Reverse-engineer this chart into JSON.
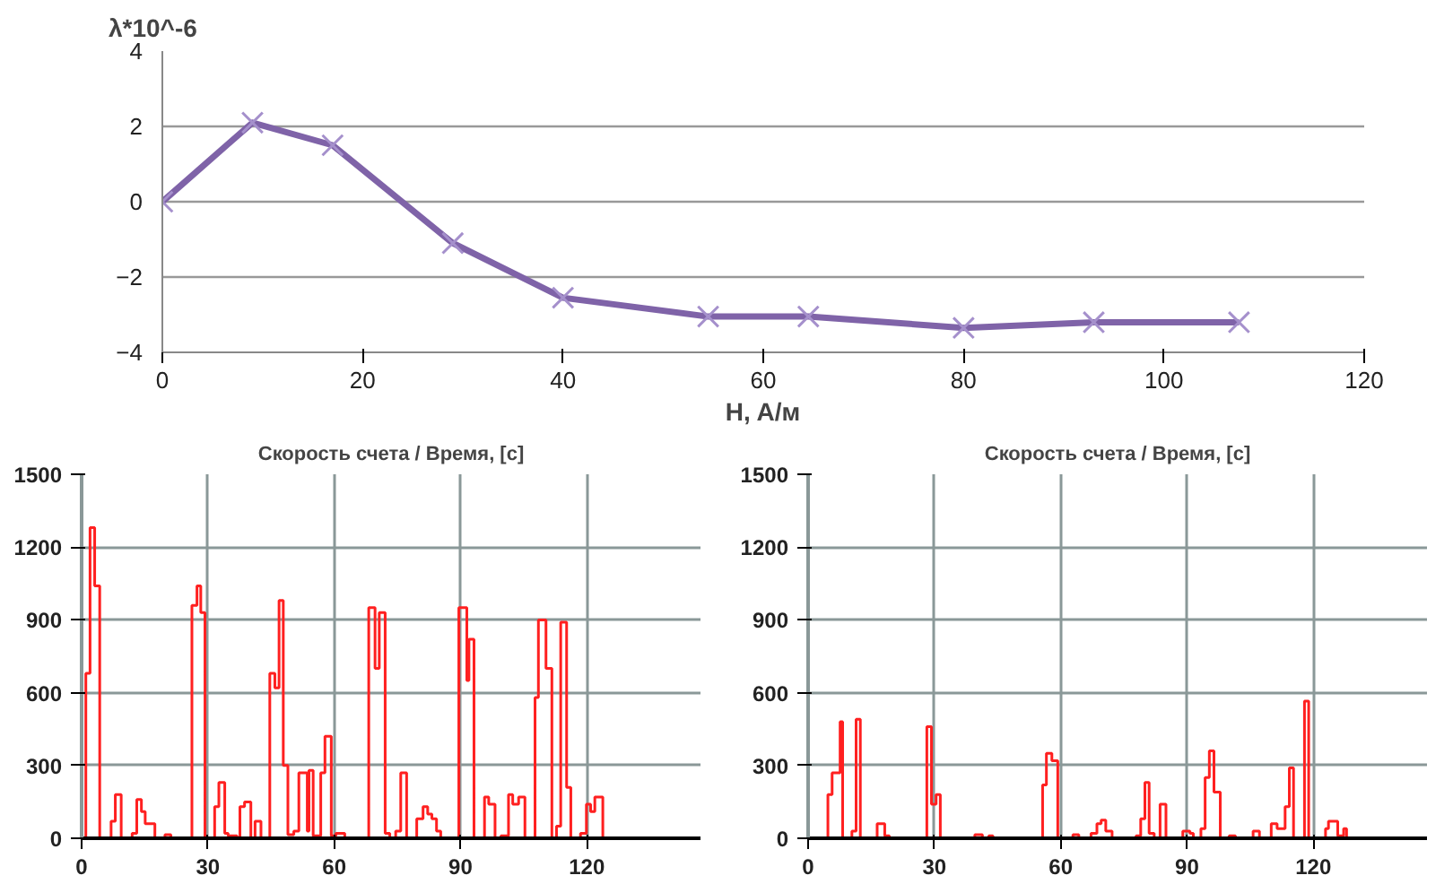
{
  "chart_data": [
    {
      "type": "line",
      "xlabel": "H, A/м",
      "ylabel": "λ*10^-6",
      "x": [
        0,
        9,
        17,
        29,
        40,
        54.5,
        64.5,
        80,
        93,
        107.5
      ],
      "series": [
        {
          "color": "#7f63a8",
          "values": [
            0,
            2.1,
            1.5,
            -1.1,
            -2.55,
            -3.05,
            -3.05,
            -3.35,
            -3.2,
            -3.2
          ]
        }
      ],
      "marker": "cross",
      "line_style": "solid",
      "xlim": [
        0,
        120
      ],
      "ylim": [
        -4,
        4
      ],
      "xticks": [
        0,
        20,
        40,
        60,
        80,
        100,
        120
      ],
      "yticks": [
        -4,
        -2,
        0,
        2,
        4
      ],
      "grid": "y"
    },
    {
      "type": "step",
      "title": "Скорость счета / Время, [с]",
      "x": [
        0,
        1,
        2,
        3.1,
        4.3,
        7,
        8,
        9.4,
        12,
        13.1,
        14.2,
        15.1,
        17.4,
        19.8,
        21.2,
        26.2,
        27.4,
        28.3,
        29.3,
        31.6,
        32.6,
        34,
        34.8,
        36.9,
        37.6,
        38.7,
        40.2,
        41.2,
        42.6,
        44.7,
        45.9,
        46.9,
        47.9,
        49,
        50.4,
        51.6,
        53.6,
        54,
        55,
        56.8,
        57.8,
        59.3,
        60.4,
        62.5,
        68.2,
        69.7,
        70.7,
        72.1,
        73.2,
        74.6,
        75.8,
        77.2,
        79.6,
        81.1,
        82.2,
        83.2,
        84.3,
        85.3,
        89.6,
        91.5,
        92,
        93.2,
        95.7,
        96.7,
        98.2,
        99.6,
        101.4,
        102.4,
        103.8,
        105.3,
        107.7,
        108.5,
        110.3,
        111.7,
        112.8,
        113.8,
        115.2,
        116.2,
        118.5,
        119.9,
        120.9,
        121.9,
        123.8
      ],
      "series": [
        {
          "color": "#ff2020",
          "values": [
            0,
            680,
            1280,
            1040,
            0,
            70,
            180,
            0,
            20,
            160,
            110,
            60,
            0,
            15,
            0,
            960,
            1040,
            930,
            0,
            130,
            230,
            20,
            10,
            0,
            130,
            150,
            0,
            70,
            0,
            680,
            620,
            980,
            300,
            15,
            30,
            270,
            30,
            280,
            10,
            270,
            420,
            10,
            20,
            0,
            950,
            700,
            930,
            20,
            0,
            30,
            270,
            0,
            80,
            130,
            100,
            80,
            30,
            0,
            950,
            650,
            820,
            0,
            170,
            140,
            0,
            10,
            180,
            140,
            170,
            0,
            580,
            900,
            700,
            0,
            50,
            890,
            210,
            0,
            20,
            140,
            110,
            170,
            0
          ]
        }
      ],
      "xlim": [
        0,
        147
      ],
      "ylim": [
        0,
        1500
      ],
      "xticks": [
        0,
        30,
        60,
        90,
        120
      ],
      "yticks": [
        0,
        300,
        600,
        900,
        1200,
        1500
      ],
      "grid": true
    },
    {
      "type": "step",
      "title": "Скорость счета / Время, [с]",
      "x": [
        0,
        4.7,
        5.7,
        7.6,
        8.2,
        10.4,
        11.4,
        12.4,
        16.4,
        18.2,
        19.3,
        28.2,
        29.3,
        30.4,
        31.4,
        39.6,
        41.4,
        42.9,
        43.9,
        55.7,
        56.6,
        57.9,
        59.3,
        62.9,
        64.3,
        67.2,
        68.6,
        69.6,
        70.7,
        72.2,
        77.9,
        79,
        80,
        81,
        82.2,
        83.6,
        85,
        89,
        90.7,
        91.5,
        93.3,
        94.3,
        95.3,
        96.4,
        97.9,
        100,
        101.5,
        105.7,
        107.2,
        110,
        111.4,
        113.3,
        114.3,
        115.3,
        117.9,
        118.9,
        122.9,
        123.6,
        125.8,
        127.2,
        127.9
      ],
      "series": [
        {
          "color": "#ff2020",
          "values": [
            0,
            180,
            270,
            480,
            0,
            30,
            490,
            0,
            60,
            10,
            0,
            460,
            140,
            180,
            0,
            15,
            0,
            10,
            0,
            220,
            350,
            320,
            0,
            15,
            0,
            20,
            60,
            75,
            30,
            0,
            10,
            80,
            230,
            20,
            0,
            140,
            0,
            30,
            20,
            0,
            40,
            250,
            360,
            190,
            0,
            10,
            0,
            30,
            0,
            60,
            40,
            130,
            290,
            0,
            565,
            0,
            40,
            70,
            10,
            40,
            0
          ]
        }
      ],
      "xlim": [
        0,
        147
      ],
      "ylim": [
        0,
        1500
      ],
      "xticks": [
        0,
        30,
        60,
        90,
        120
      ],
      "yticks": [
        0,
        300,
        600,
        900,
        1200,
        1500
      ],
      "grid": true
    }
  ]
}
